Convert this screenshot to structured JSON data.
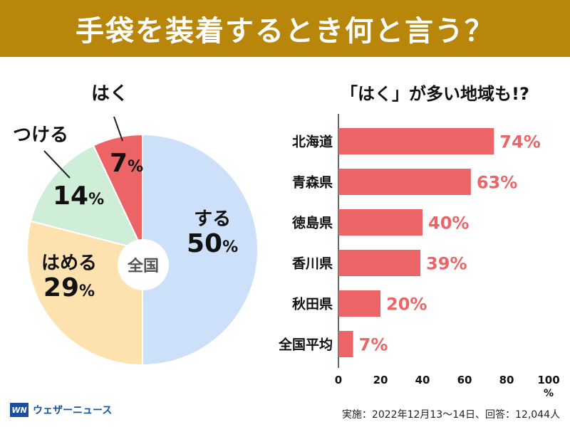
{
  "title": "手袋を装着するとき何と言う？",
  "colors": {
    "title_bg": "#b8860b",
    "suru": "#cce0fa",
    "hameru": "#fde2b0",
    "tsukeru": "#cfeed8",
    "haku": "#ec6466",
    "bar": "#ec6466",
    "bar_text": "#ec6466"
  },
  "pie": {
    "center_label": "全国",
    "slices": [
      {
        "name": "する",
        "pct": "50",
        "unit": "%",
        "value": 50
      },
      {
        "name": "はめる",
        "pct": "29",
        "unit": "%",
        "value": 29
      },
      {
        "name": "つける",
        "pct": "14",
        "unit": "%",
        "value": 14
      },
      {
        "name": "はく",
        "pct": "7",
        "unit": "%",
        "value": 7
      }
    ]
  },
  "bar_title": "「はく」が多い地域も!?",
  "footer": {
    "brand_logo": "WN",
    "brand_name": "ウェザーニュース",
    "note": "実施：2022年12月13〜14日、回答：12,044人"
  },
  "chart_data": [
    {
      "type": "pie",
      "title": "全国",
      "categories": [
        "する",
        "はめる",
        "つける",
        "はく"
      ],
      "values": [
        50,
        29,
        14,
        7
      ]
    },
    {
      "type": "bar",
      "orientation": "horizontal",
      "title": "「はく」が多い地域も!?",
      "categories": [
        "北海道",
        "青森県",
        "徳島県",
        "香川県",
        "秋田県",
        "全国平均"
      ],
      "values": [
        74,
        63,
        40,
        39,
        20,
        7
      ],
      "value_labels": [
        "74%",
        "63%",
        "40%",
        "39%",
        "20%",
        "7%"
      ],
      "xlim": [
        0,
        100
      ],
      "xticks": [
        "0",
        "20",
        "40",
        "60",
        "80",
        "100"
      ],
      "xlabel": "%"
    }
  ]
}
